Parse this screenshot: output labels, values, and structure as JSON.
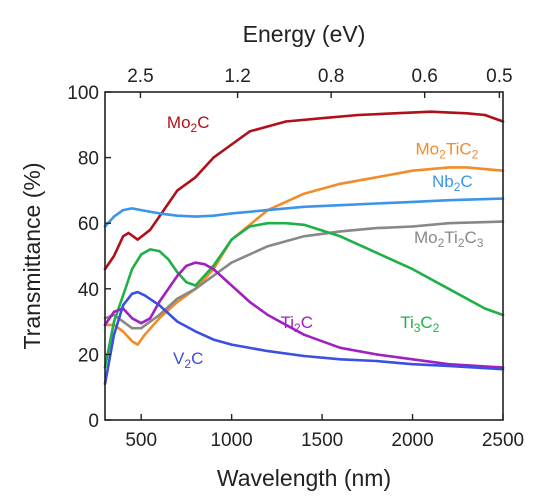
{
  "chart_data": {
    "type": "line",
    "xlabel": "Wavelength (nm)",
    "ylabel": "Transmittance (%)",
    "top_xlabel": "Energy (eV)",
    "xlim": [
      300,
      2500
    ],
    "ylim": [
      0,
      100
    ],
    "x_ticks": [
      500,
      1000,
      1500,
      2000,
      2500
    ],
    "y_ticks": [
      0,
      20,
      40,
      60,
      80,
      100
    ],
    "top_ticks": [
      {
        "label": "2.5",
        "wavelength": 496
      },
      {
        "label": "1.2",
        "wavelength": 1033
      },
      {
        "label": "0.8",
        "wavelength": 1550
      },
      {
        "label": "0.6",
        "wavelength": 2067
      },
      {
        "label": "0.5",
        "wavelength": 2480
      }
    ],
    "grid": false,
    "legend": "inline labels",
    "series": [
      {
        "name": "Mo2C",
        "label_parts": [
          {
            "t": "Mo"
          },
          {
            "t": "2",
            "sub": true
          },
          {
            "t": "C"
          }
        ],
        "color": "#b01018",
        "label_at": [
          760,
          89
        ],
        "x": [
          300,
          350,
          400,
          430,
          480,
          550,
          600,
          700,
          800,
          900,
          1000,
          1100,
          1300,
          1500,
          1700,
          1900,
          2100,
          2300,
          2400,
          2500
        ],
        "y": [
          46,
          50,
          56,
          57,
          55,
          58,
          62,
          70,
          74,
          80,
          84,
          88,
          91,
          92,
          93,
          93.5,
          94,
          93.5,
          93,
          91
        ]
      },
      {
        "name": "Mo2TiC2",
        "label_parts": [
          {
            "t": "Mo"
          },
          {
            "t": "2",
            "sub": true
          },
          {
            "t": "TiC"
          },
          {
            "t": "2",
            "sub": true
          }
        ],
        "color": "#f28c28",
        "label_at": [
          2190,
          81
        ],
        "x": [
          300,
          350,
          400,
          450,
          480,
          520,
          600,
          700,
          800,
          900,
          1000,
          1200,
          1400,
          1600,
          1800,
          2000,
          2200,
          2300,
          2400,
          2500
        ],
        "y": [
          29,
          29,
          27,
          24,
          23,
          26,
          31,
          36,
          40,
          46,
          55,
          64,
          69,
          72,
          74,
          76,
          77,
          77,
          76.5,
          76
        ]
      },
      {
        "name": "Nb2C",
        "label_parts": [
          {
            "t": "Nb"
          },
          {
            "t": "2",
            "sub": true
          },
          {
            "t": "C"
          }
        ],
        "color": "#3c95e8",
        "label_at": [
          2220,
          71
        ],
        "x": [
          300,
          350,
          400,
          450,
          500,
          600,
          700,
          800,
          900,
          1000,
          1200,
          1400,
          1600,
          1800,
          2000,
          2200,
          2500
        ],
        "y": [
          59,
          62,
          64,
          64.5,
          64,
          63,
          62.3,
          62,
          62.3,
          63,
          64,
          65,
          65.5,
          66,
          66.5,
          67,
          67.5
        ]
      },
      {
        "name": "Mo2Ti2C3",
        "label_parts": [
          {
            "t": "Mo"
          },
          {
            "t": "2",
            "sub": true
          },
          {
            "t": "Ti"
          },
          {
            "t": "2",
            "sub": true
          },
          {
            "t": "C"
          },
          {
            "t": "3",
            "sub": true
          }
        ],
        "color": "#888888",
        "label_at": [
          2200,
          54
        ],
        "x": [
          300,
          350,
          400,
          450,
          500,
          600,
          700,
          800,
          900,
          1000,
          1200,
          1400,
          1600,
          1800,
          2000,
          2200,
          2500
        ],
        "y": [
          31,
          32,
          30,
          28,
          28,
          32,
          37,
          40,
          44,
          48,
          53,
          56,
          57.5,
          58.5,
          59,
          60,
          60.5
        ]
      },
      {
        "name": "Ti3C2",
        "label_parts": [
          {
            "t": "Ti"
          },
          {
            "t": "3",
            "sub": true
          },
          {
            "t": "C"
          },
          {
            "t": "2",
            "sub": true
          }
        ],
        "color": "#1fb048",
        "label_at": [
          2040,
          28
        ],
        "x": [
          300,
          350,
          400,
          450,
          500,
          550,
          600,
          650,
          700,
          750,
          800,
          900,
          1000,
          1100,
          1200,
          1300,
          1400,
          1600,
          1800,
          2000,
          2200,
          2400,
          2500
        ],
        "y": [
          16,
          30,
          38,
          46,
          50.5,
          52,
          51.5,
          49,
          45,
          42,
          41,
          47,
          55,
          59,
          60,
          60,
          59.5,
          56,
          51,
          46,
          40,
          34,
          32
        ]
      },
      {
        "name": "Ti2C",
        "label_parts": [
          {
            "t": "Ti"
          },
          {
            "t": "2",
            "sub": true
          },
          {
            "t": "C"
          }
        ],
        "color": "#a020c0",
        "label_at": [
          1360,
          28
        ],
        "x": [
          300,
          350,
          400,
          450,
          500,
          550,
          600,
          700,
          750,
          800,
          850,
          900,
          1000,
          1100,
          1200,
          1400,
          1600,
          1800,
          2000,
          2200,
          2500
        ],
        "y": [
          29,
          33,
          34,
          31,
          29.5,
          31,
          36,
          44,
          47,
          48,
          47.5,
          46,
          41,
          36,
          32,
          26,
          22,
          20,
          18.5,
          17,
          16
        ]
      },
      {
        "name": "V2C",
        "label_parts": [
          {
            "t": "V"
          },
          {
            "t": "2",
            "sub": true
          },
          {
            "t": "C"
          }
        ],
        "color": "#3b4fe0",
        "label_at": [
          760,
          17
        ],
        "x": [
          300,
          350,
          400,
          450,
          480,
          520,
          600,
          700,
          800,
          900,
          1000,
          1200,
          1400,
          1600,
          1800,
          2000,
          2200,
          2500
        ],
        "y": [
          11,
          26,
          35,
          38.5,
          39,
          38,
          35,
          30,
          27,
          24.5,
          23,
          21,
          19.5,
          18.5,
          18,
          17,
          16.5,
          15.5
        ]
      }
    ]
  }
}
